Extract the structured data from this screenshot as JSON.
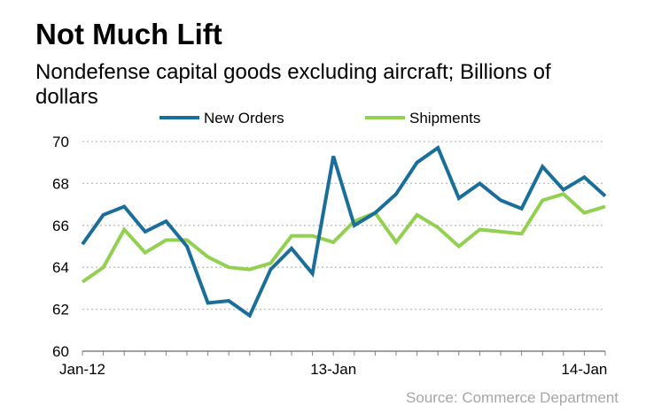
{
  "header": {
    "title": "Not Much Lift",
    "subtitle": "Nondefense capital goods excluding aircraft; Billions of dollars"
  },
  "footer": {
    "source": "Source: Commerce Department"
  },
  "colors": {
    "new_orders": "#1a6e9a",
    "shipments": "#92d050",
    "grid": "#bfbfbf",
    "axis": "#808080"
  },
  "chart_data": {
    "type": "line",
    "title": "Not Much Lift",
    "subtitle": "Nondefense capital goods excluding aircraft; Billions of dollars",
    "xlabel": "",
    "ylabel": "",
    "ylim": [
      60,
      70
    ],
    "yticks": [
      60,
      62,
      64,
      66,
      68,
      70
    ],
    "grid": true,
    "legend_position": "top",
    "x_tick_labels": [
      {
        "index": 0,
        "label": "Jan-12"
      },
      {
        "index": 12,
        "label": "13-Jan"
      },
      {
        "index": 24,
        "label": "14-Jan"
      }
    ],
    "x": [
      "2012-01",
      "2012-02",
      "2012-03",
      "2012-04",
      "2012-05",
      "2012-06",
      "2012-07",
      "2012-08",
      "2012-09",
      "2012-10",
      "2012-11",
      "2012-12",
      "2013-01",
      "2013-02",
      "2013-03",
      "2013-04",
      "2013-05",
      "2013-06",
      "2013-07",
      "2013-08",
      "2013-09",
      "2013-10",
      "2013-11",
      "2013-12",
      "2014-01",
      "2014-02"
    ],
    "series": [
      {
        "name": "New Orders",
        "values": [
          65.1,
          66.5,
          66.9,
          65.7,
          66.2,
          65.0,
          62.3,
          62.4,
          61.7,
          63.9,
          64.9,
          63.7,
          69.3,
          66.0,
          66.6,
          67.5,
          69.0,
          69.7,
          67.3,
          68.0,
          67.2,
          66.8,
          68.8,
          67.7,
          68.3,
          67.4
        ]
      },
      {
        "name": "Shipments",
        "values": [
          63.3,
          64.0,
          65.8,
          64.7,
          65.3,
          65.3,
          64.5,
          64.0,
          63.9,
          64.2,
          65.5,
          65.5,
          65.2,
          66.2,
          66.6,
          65.2,
          66.5,
          65.9,
          65.0,
          65.8,
          65.7,
          65.6,
          67.2,
          67.5,
          66.6,
          66.9
        ]
      }
    ]
  }
}
